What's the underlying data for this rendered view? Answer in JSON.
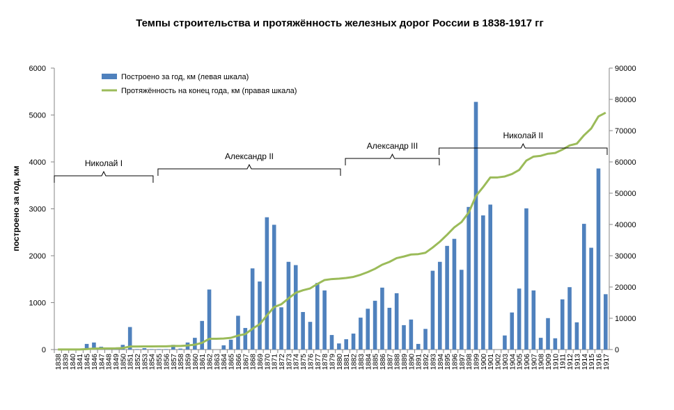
{
  "chart_data": {
    "type": "bar+line",
    "title": "Темпы строительства и протяжённость железных дорог России в 1838-1917 гг",
    "ylabel": "построено за год, км",
    "ylabel_right": "",
    "ylim": [
      0,
      6000
    ],
    "ylim_right": [
      0,
      90000
    ],
    "yticks": [
      "0",
      "1000",
      "2000",
      "3000",
      "4000",
      "5000",
      "6000"
    ],
    "yticks_right": [
      "0",
      "10000",
      "20000",
      "30000",
      "40000",
      "50000",
      "60000",
      "70000",
      "80000",
      "90000"
    ],
    "grid": false,
    "legend_position": "top-left",
    "categories": [
      "1838",
      "1839",
      "1840",
      "1841",
      "1845",
      "1846",
      "1847",
      "1848",
      "1849",
      "1850",
      "1851",
      "1852",
      "1853",
      "1854",
      "1855",
      "1856",
      "1857",
      "1858",
      "1859",
      "1860",
      "1861",
      "1862",
      "1863",
      "1864",
      "1865",
      "1866",
      "1867",
      "1868",
      "1869",
      "1870",
      "1871",
      "1872",
      "1873",
      "1874",
      "1875",
      "1876",
      "1877",
      "1878",
      "1879",
      "1880",
      "1881",
      "1882",
      "1883",
      "1884",
      "1885",
      "1886",
      "1887",
      "1888",
      "1889",
      "1890",
      "1891",
      "1892",
      "1893",
      "1894",
      "1895",
      "1896",
      "1897",
      "1898",
      "1899",
      "1900",
      "1901",
      "1902",
      "1903",
      "1904",
      "1905",
      "1906",
      "1907",
      "1908",
      "1909",
      "1910",
      "1911",
      "1912",
      "1913",
      "1914",
      "1915",
      "1916",
      "1917"
    ],
    "series": [
      {
        "name": "Построено за год, км (левая шкала)",
        "type": "bar",
        "axis": "left",
        "color": "#4f81bd",
        "values": [
          0,
          0,
          0,
          0,
          120,
          150,
          60,
          10,
          10,
          100,
          480,
          10,
          30,
          10,
          10,
          10,
          100,
          20,
          150,
          250,
          610,
          1280,
          0,
          90,
          210,
          720,
          460,
          1730,
          1450,
          2820,
          2660,
          900,
          1870,
          1800,
          800,
          590,
          1420,
          1260,
          310,
          130,
          220,
          340,
          680,
          870,
          1040,
          1320,
          890,
          1200,
          520,
          640,
          120,
          440,
          1680,
          1870,
          2210,
          2360,
          1700,
          3040,
          5280,
          2860,
          3090,
          0,
          300,
          790,
          1300,
          3010,
          1260,
          250,
          670,
          240,
          1070,
          1330,
          580,
          2680,
          2170,
          3860,
          1180
        ]
      },
      {
        "name": "Протяжённость на конец года, км (правая шкала)",
        "type": "line",
        "axis": "right",
        "color": "#9bbb59",
        "values": [
          30,
          30,
          30,
          30,
          150,
          300,
          350,
          370,
          380,
          480,
          960,
          970,
          1000,
          1010,
          1020,
          1030,
          1130,
          1150,
          1300,
          1550,
          2160,
          3440,
          3450,
          3540,
          3750,
          4470,
          4930,
          6660,
          8110,
          10930,
          13590,
          14490,
          16360,
          18160,
          18960,
          19550,
          20970,
          22230,
          22540,
          22670,
          22890,
          23230,
          23910,
          24780,
          25820,
          27140,
          28030,
          29230,
          29750,
          30390,
          30510,
          30950,
          32630,
          34500,
          36710,
          39070,
          40770,
          43810,
          49090,
          51950,
          55040,
          55040,
          55340,
          56130,
          57430,
          60440,
          61700,
          61950,
          62620,
          62860,
          63930,
          65260,
          65840,
          68520,
          70690,
          74550,
          75730
        ]
      }
    ],
    "annotations": [
      {
        "label": "Николай I",
        "from": "1838",
        "to": "1854"
      },
      {
        "label": "Александр II",
        "from": "1855",
        "to": "1880"
      },
      {
        "label": "Александр III",
        "from": "1881",
        "to": "1894"
      },
      {
        "label": "Николай II",
        "from": "1894",
        "to": "1917"
      }
    ]
  }
}
